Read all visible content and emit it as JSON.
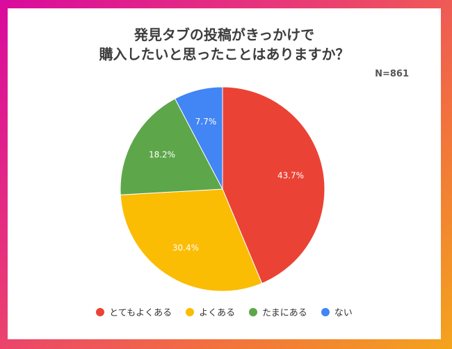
{
  "title_lines": [
    "発見タブの投稿がきっかけで",
    "購入したいと思ったことはありますか？"
  ],
  "sample_size": "N=861",
  "chart_data": {
    "type": "pie",
    "title": "発見タブの投稿がきっかけで購入したいと思ったことはありますか？",
    "categories": [
      "とてもよくある",
      "よくある",
      "たまにある",
      "ない"
    ],
    "values": [
      43.7,
      30.4,
      18.2,
      7.7
    ],
    "value_labels": [
      "43.7%",
      "30.4%",
      "18.2%",
      "7.7%"
    ],
    "colors": [
      "#ea4335",
      "#fbbc04",
      "#5ea64a",
      "#4285f4"
    ],
    "start_angle": "12 o'clock",
    "direction": "clockwise",
    "legend_position": "bottom"
  }
}
